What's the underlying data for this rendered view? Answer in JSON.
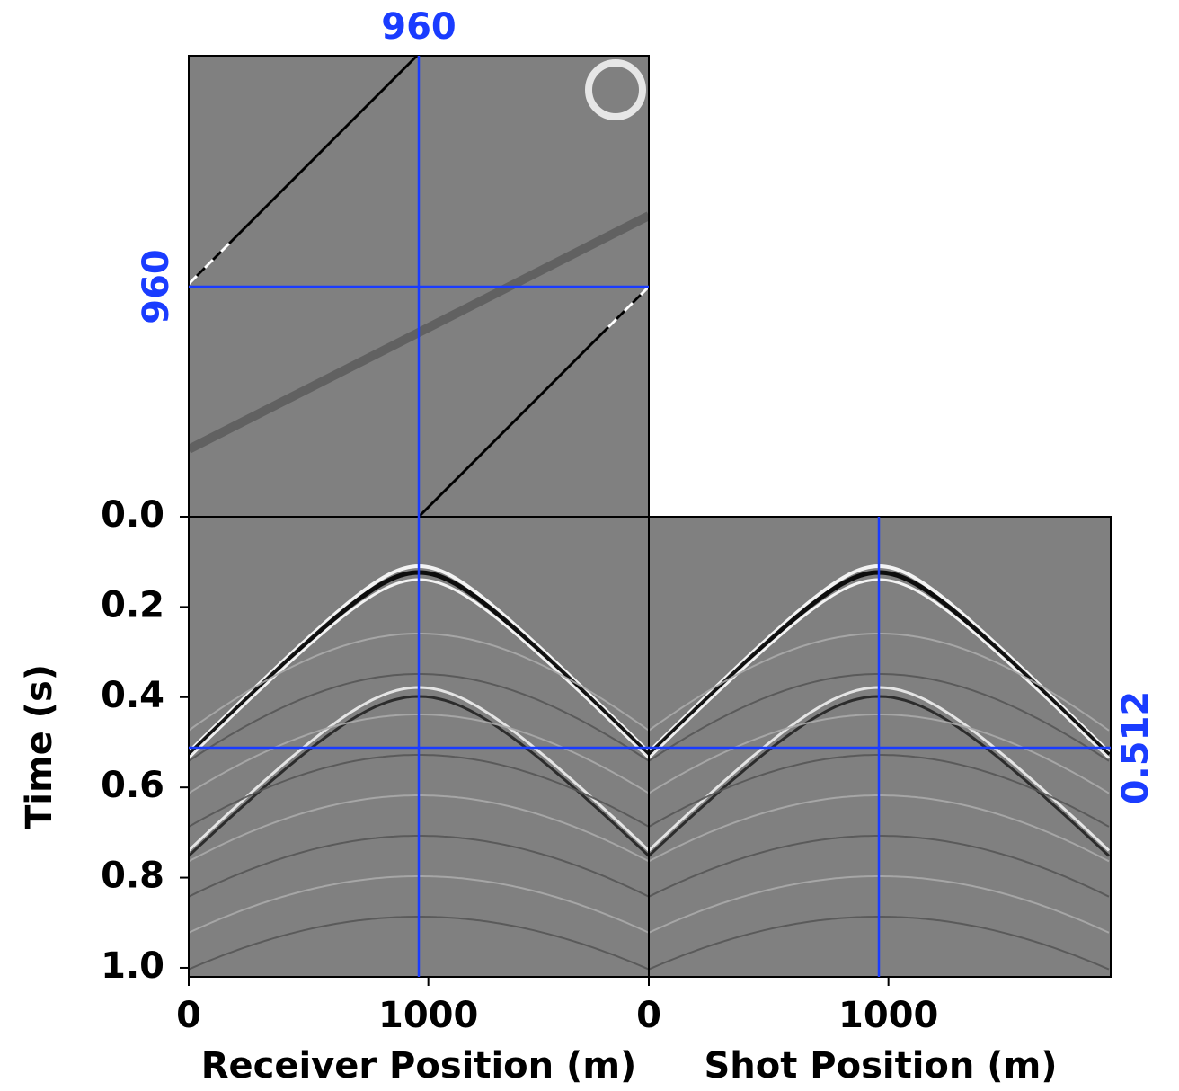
{
  "chart_data": {
    "type": "seismic-cube",
    "receiver_label": "Receiver Position (m)",
    "shot_label": "Shot Position (m)",
    "y_label": "Time (s)",
    "xlim": [
      0,
      1920
    ],
    "xticks": [
      0,
      1000
    ],
    "ylim": [
      0,
      1.02
    ],
    "yticks": [
      {
        "value": 0,
        "label": "0.0"
      },
      0.2,
      0.4,
      0.6,
      0.8,
      {
        "value": 1,
        "label": "1.0"
      }
    ],
    "crosshair": {
      "receiver": 960,
      "shot": 960,
      "time": 0.512
    },
    "crosshair_color": "#1a3cff",
    "background_color": "#808080"
  }
}
